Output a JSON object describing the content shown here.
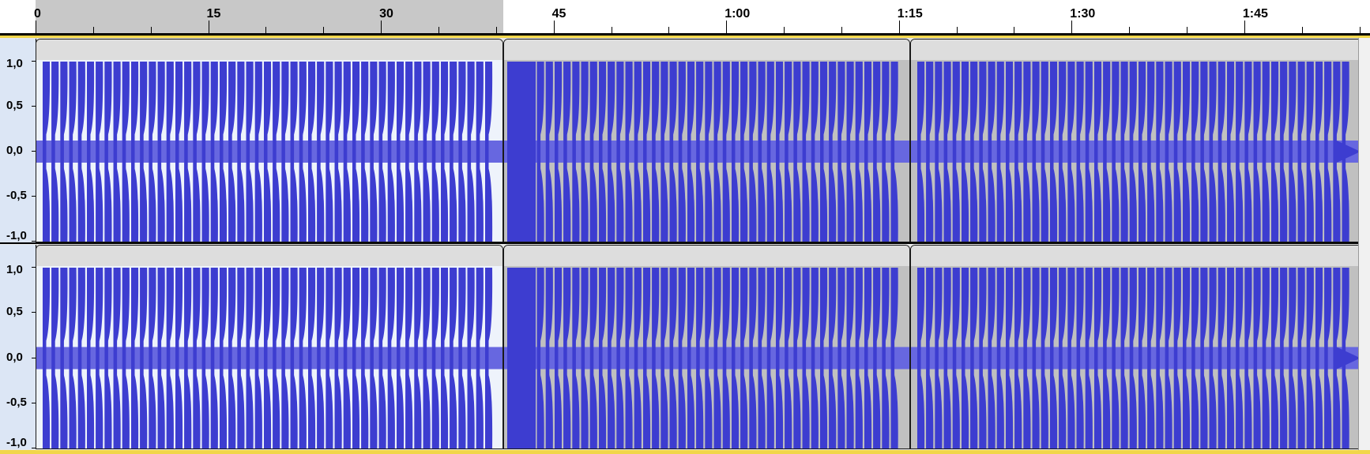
{
  "timeline_ruler": {
    "labels": [
      "0",
      "15",
      "30",
      "45",
      "1:00",
      "1:15",
      "1:30",
      "1:45"
    ],
    "selection_seconds": [
      0,
      40.6
    ],
    "total_seconds": 117
  },
  "tracks": [
    {
      "channel": "left",
      "amplitude_labels": [
        "1,0",
        "0,5",
        "0,0",
        "-0,5",
        "-1,0"
      ],
      "clips": [
        {
          "start_seconds": 0,
          "end_seconds": 40.6,
          "selected": true
        },
        {
          "start_seconds": 40.6,
          "end_seconds": 76.0,
          "selected": false
        },
        {
          "start_seconds": 76.0,
          "end_seconds": 115.3,
          "selected": false
        }
      ]
    },
    {
      "channel": "right",
      "amplitude_labels": [
        "1,0",
        "0,5",
        "0,0",
        "-0,5",
        "-1,0"
      ],
      "clips": [
        {
          "start_seconds": 0,
          "end_seconds": 40.6,
          "selected": true
        },
        {
          "start_seconds": 40.6,
          "end_seconds": 76.0,
          "selected": false
        },
        {
          "start_seconds": 76.0,
          "end_seconds": 115.3,
          "selected": false
        }
      ]
    }
  ],
  "colors": {
    "waveform_peak": "#3d3dd0",
    "waveform_rms": "#6767e0",
    "selection_background": "#eef3fb",
    "clip_background": "#c0c0c0",
    "accent": "#f1d64a"
  }
}
